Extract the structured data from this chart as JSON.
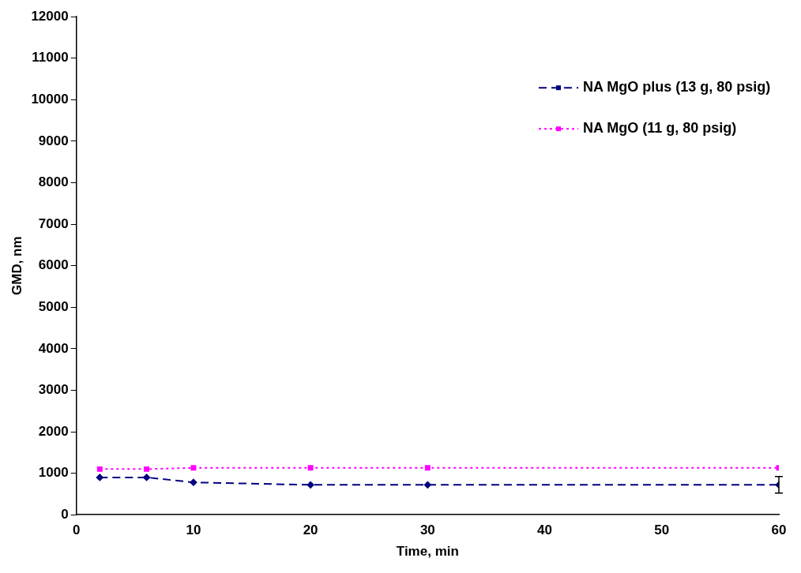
{
  "chart_data": {
    "type": "line",
    "xlabel": "Time, min",
    "ylabel": "GMD, nm",
    "x": [
      2,
      6,
      10,
      20,
      30,
      60
    ],
    "series": [
      {
        "name": "NA MgO plus (13 g, 80 psig)",
        "color": "#000080",
        "values": [
          900,
          900,
          780,
          720,
          720,
          720
        ],
        "errors": [
          null,
          null,
          null,
          null,
          null,
          200
        ],
        "marker": "diamond",
        "line_style": "dashed"
      },
      {
        "name": "NA MgO (11 g, 80 psig)",
        "color": "#ff00ff",
        "values": [
          1100,
          1100,
          1130,
          1130,
          1130,
          1130
        ],
        "marker": "square",
        "line_style": "dotted"
      }
    ],
    "xlim": [
      0,
      60
    ],
    "xticks": [
      0,
      10,
      20,
      30,
      40,
      50,
      60
    ],
    "ylim": [
      0,
      12000
    ],
    "yticks": [
      0,
      1000,
      2000,
      3000,
      4000,
      5000,
      6000,
      7000,
      8000,
      9000,
      10000,
      11000,
      12000
    ],
    "grid": false,
    "legend": "top right"
  }
}
